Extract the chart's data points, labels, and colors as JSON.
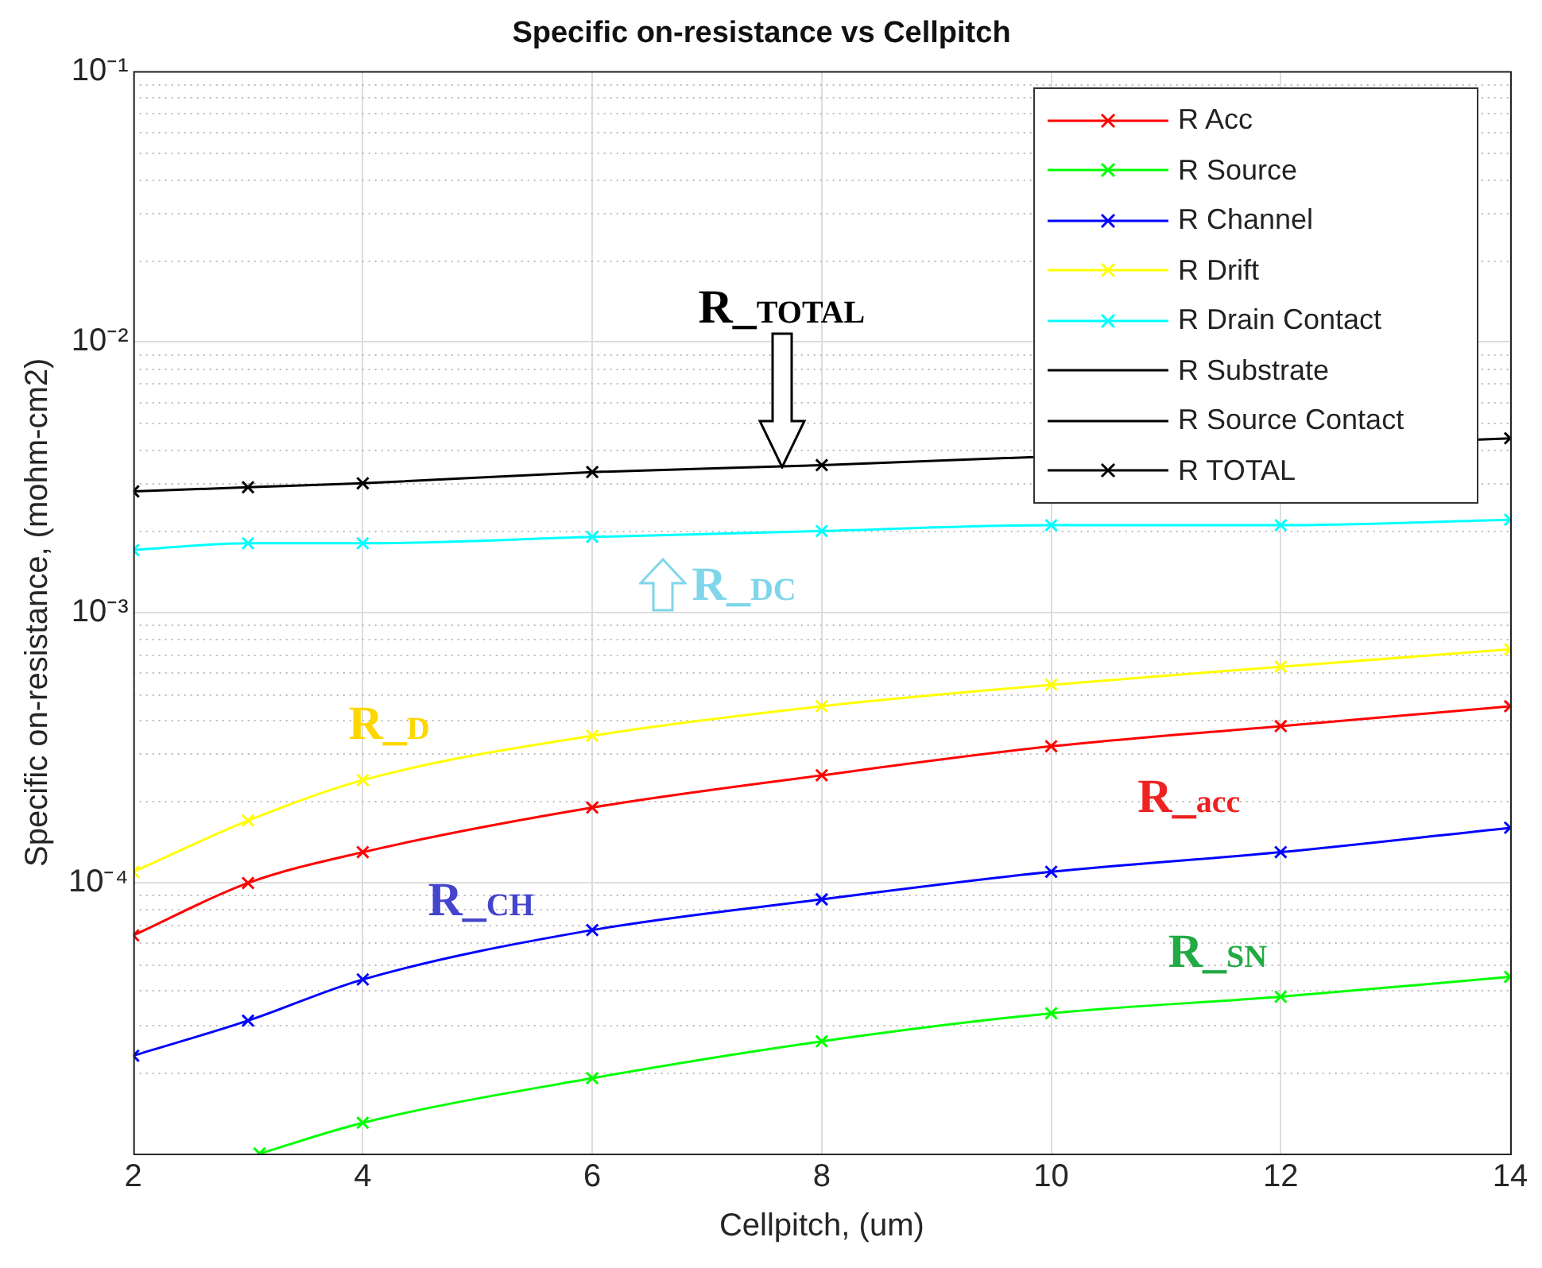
{
  "chart_data": {
    "type": "line",
    "title": "Specific on-resistance vs Cellpitch",
    "xlabel": "Cellpitch, (um)",
    "ylabel": "Specific on-resistance, (mohm-cm2)",
    "x": [
      2,
      3,
      4,
      6,
      8,
      10,
      12,
      14
    ],
    "series": [
      {
        "name": "R Acc",
        "color": "#ff0000",
        "values": [
          6.4e-05,
          0.0001,
          0.00013,
          0.00019,
          0.00025,
          0.00032,
          0.00038,
          0.00045
        ]
      },
      {
        "name": "R Source",
        "color": "#00ff00",
        "x": [
          3.1,
          4,
          6,
          8,
          10,
          12,
          14
        ],
        "values": [
          1e-05,
          1.3e-05,
          1.9e-05,
          2.6e-05,
          3.3e-05,
          3.8e-05,
          4.5e-05
        ]
      },
      {
        "name": "R Channel",
        "color": "#0000ff",
        "values": [
          2.3e-05,
          3.1e-05,
          4.4e-05,
          6.7e-05,
          8.7e-05,
          0.00011,
          0.00013,
          0.00016
        ]
      },
      {
        "name": "R Drift",
        "color": "#ffff00",
        "values": [
          0.00011,
          0.00017,
          0.00024,
          0.00035,
          0.00045,
          0.00054,
          0.00063,
          0.00073
        ]
      },
      {
        "name": "R Drain Contact",
        "color": "#00ffff",
        "values": [
          0.0017,
          0.0018,
          0.0018,
          0.0019,
          0.002,
          0.0021,
          0.0021,
          0.0022
        ]
      },
      {
        "name": "R Substrate",
        "color": "#000000",
        "marker": "none",
        "values": [
          null,
          null,
          null,
          null,
          null,
          null,
          null,
          null
        ]
      },
      {
        "name": "R Source Contact",
        "color": "#000000",
        "marker": "none",
        "values": [
          null,
          null,
          null,
          null,
          null,
          null,
          null,
          null
        ]
      },
      {
        "name": "R TOTAL",
        "color": "#000000",
        "values": [
          0.0028,
          0.0029,
          0.003,
          0.0033,
          0.0035,
          null,
          null,
          0.0044
        ]
      }
    ],
    "annotations": [
      {
        "text": "R_TOTAL",
        "x": 7.65,
        "y": 0.0034
      },
      "R_DC",
      "R_D",
      "R_acc",
      "R_CH",
      "R_SN"
    ],
    "xlim": [
      2,
      14
    ],
    "xticks": [
      2,
      4,
      6,
      8,
      10,
      12,
      14
    ],
    "ylim": [
      1e-05,
      0.1
    ],
    "log": "y",
    "yticks": [
      {
        "value": 0.0001,
        "label": "10⁻⁴"
      },
      {
        "value": 0.001,
        "label": "10⁻³"
      },
      {
        "value": 0.01,
        "label": "10⁻²"
      },
      {
        "value": 0.1,
        "label": "10⁻¹"
      }
    ],
    "grid": true,
    "legend": "top right",
    "marker": "cross",
    "line_style": "solid"
  }
}
